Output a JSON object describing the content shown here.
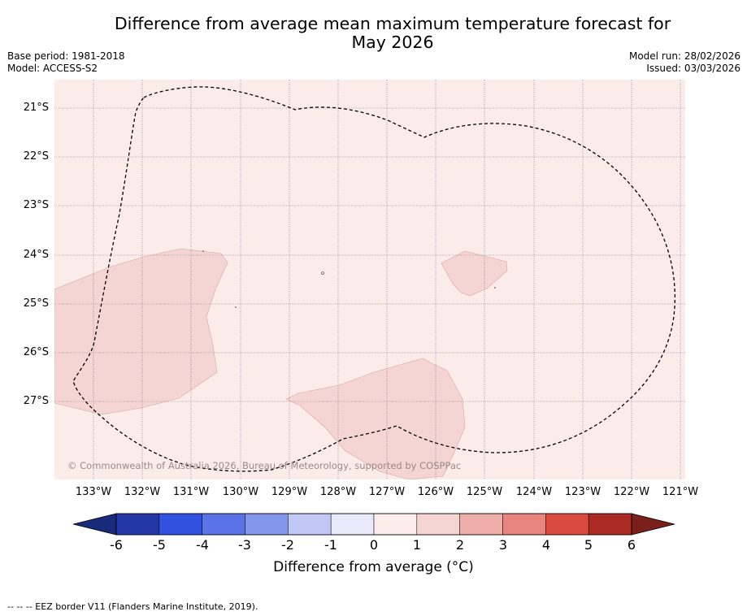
{
  "title_line1": "Difference from average mean maximum temperature forecast for",
  "title_line2": "May 2026",
  "base_period": "Base period: 1981-2018",
  "model": "Model: ACCESS-S2",
  "model_run": "Model run: 28/02/2026",
  "issued": "Issued: 03/03/2026",
  "copyright": "© Commonwealth of Australia 2026, Bureau of Meteorology, supported by COSPPac",
  "lat_labels": [
    "21°S",
    "22°S",
    "23°S",
    "24°S",
    "25°S",
    "26°S",
    "27°S"
  ],
  "lon_labels": [
    "133°W",
    "132°W",
    "131°W",
    "130°W",
    "129°W",
    "128°W",
    "127°W",
    "126°W",
    "125°W",
    "124°W",
    "123°W",
    "122°W",
    "121°W"
  ],
  "colorbar": {
    "ticks": [
      "-6",
      "-5",
      "-4",
      "-3",
      "-2",
      "-1",
      "0",
      "1",
      "2",
      "3",
      "4",
      "5",
      "6"
    ],
    "colors": [
      "#2338a6",
      "#3151e0",
      "#5a73e6",
      "#8496ec",
      "#c1c8f5",
      "#e8eafb",
      "#fcecea",
      "#f5d5d3",
      "#eeaea9",
      "#e8857e",
      "#db4a3f",
      "#ab2a24"
    ],
    "low_extend_color": "#1a2a7a",
    "high_extend_color": "#7a1f1a",
    "label": "Difference from average (°C)"
  },
  "map_colors": {
    "background": "#fbecea",
    "anomaly_1_2": "#f5d5d3"
  },
  "footer": "--  --  -- EEZ border V11 (Flanders Marine Institute, 2019)."
}
